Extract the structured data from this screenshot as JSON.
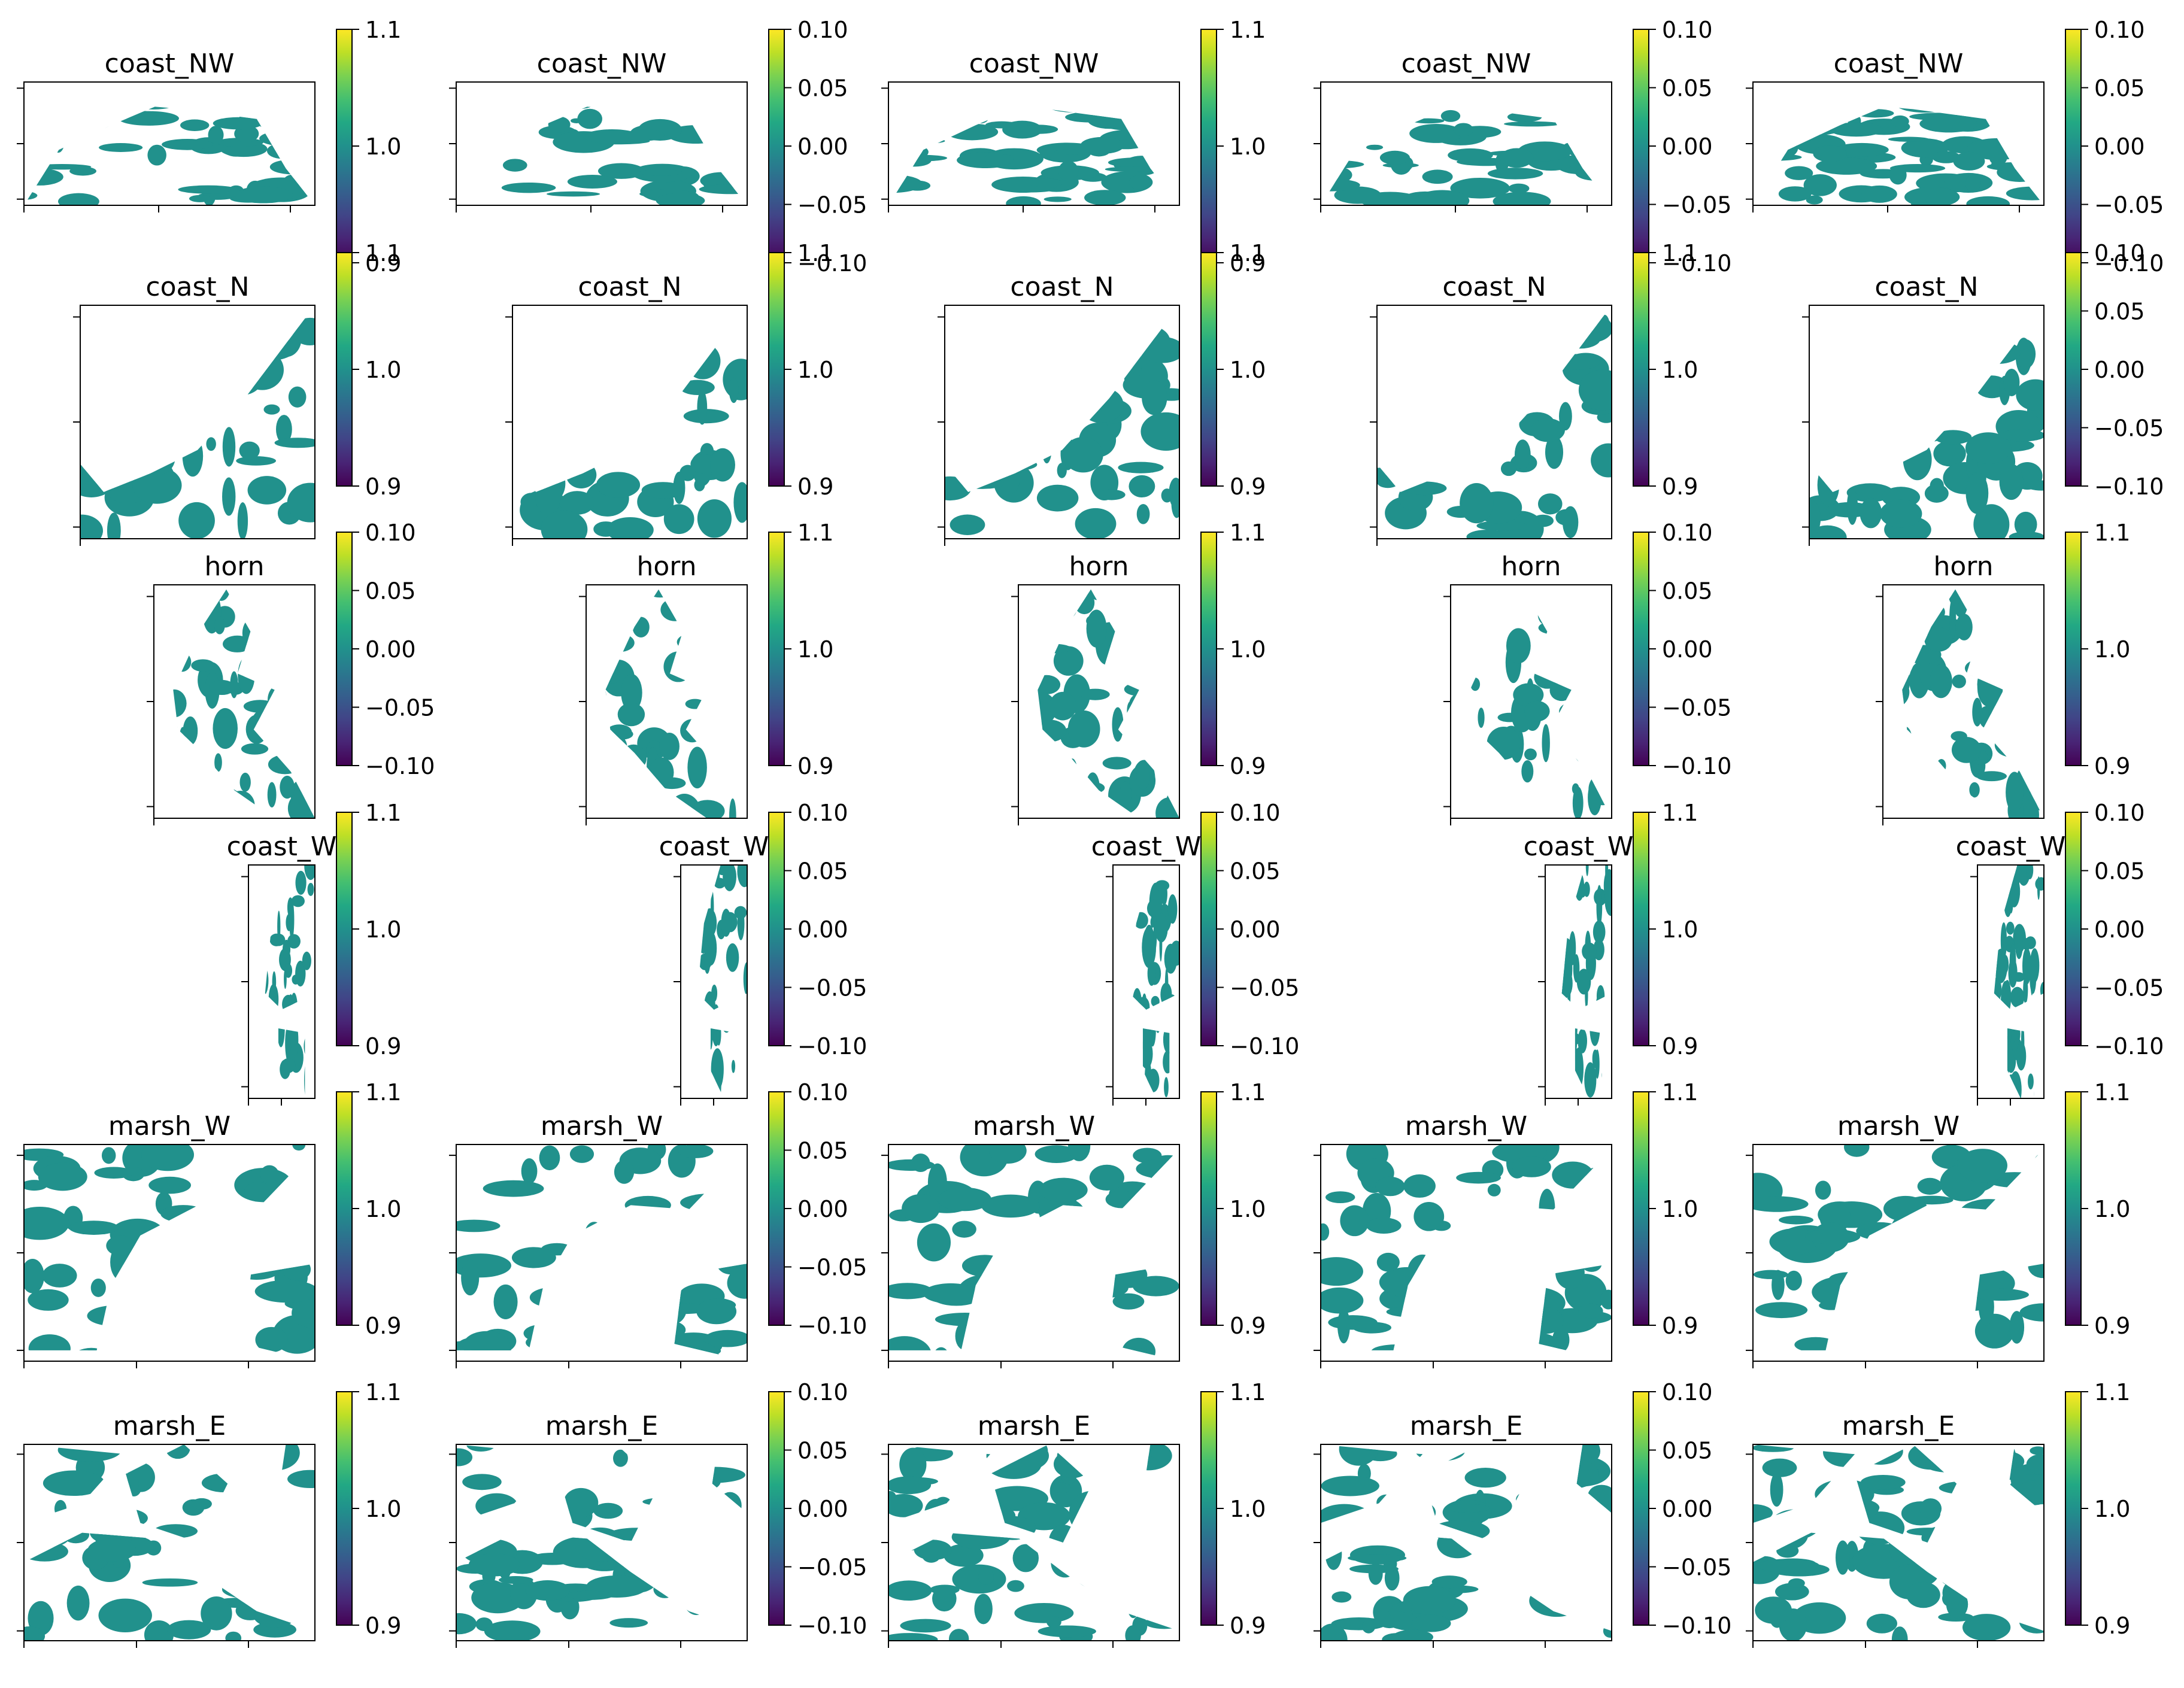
{
  "chart_data": {
    "type": "heatmap",
    "layout": {
      "rows": 6,
      "cols": 5
    },
    "colormap": "viridis",
    "fill_color": "#21918c",
    "rows": [
      {
        "title": "coast_NW",
        "scales": [
          "a",
          "b",
          "a",
          "b",
          "b"
        ],
        "shape": "dome"
      },
      {
        "title": "coast_N",
        "scales": [
          "a",
          "a",
          "a",
          "a",
          "b"
        ],
        "shape": "arc"
      },
      {
        "title": "horn",
        "scales": [
          "b",
          "a",
          "a",
          "b",
          "a"
        ],
        "shape": "horn"
      },
      {
        "title": "coast_W",
        "scales": [
          "a",
          "b",
          "b",
          "a",
          "b"
        ],
        "shape": "strip"
      },
      {
        "title": "marsh_W",
        "scales": [
          "a",
          "b",
          "a",
          "a",
          "a"
        ],
        "shape": "marshw"
      },
      {
        "title": "marsh_E",
        "scales": [
          "a",
          "b",
          "a",
          "b",
          "a"
        ],
        "shape": "marshe"
      }
    ],
    "colorbar_scales": {
      "a": {
        "range": [
          0.9,
          1.1
        ],
        "ticks": [
          "1.1",
          "1.0",
          "0.9"
        ]
      },
      "b": {
        "range": [
          -0.1,
          0.1
        ],
        "ticks": [
          "0.10",
          "0.05",
          "0.00",
          "−0.05",
          "−0.10"
        ]
      }
    },
    "legend": "none",
    "grid": false
  }
}
